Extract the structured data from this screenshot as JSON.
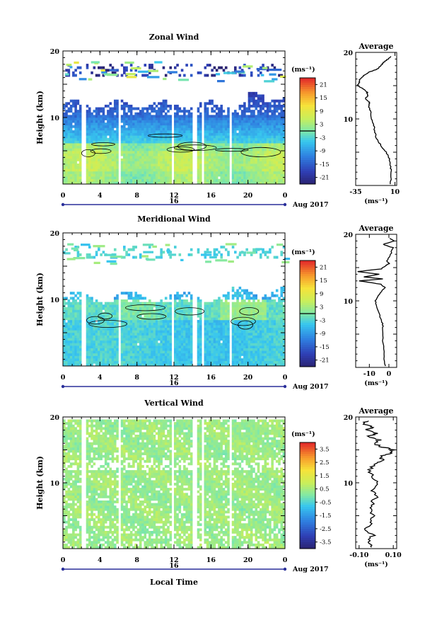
{
  "chart_data": [
    {
      "type": "heatmap",
      "title": "Zonal Wind",
      "ylabel": "Height (km)",
      "yticks": [
        "20",
        "10"
      ],
      "ylim": [
        0,
        20
      ],
      "xticks": [
        "0",
        "4",
        "8",
        "12",
        "16",
        "20",
        "0"
      ],
      "xlim": [
        0,
        24
      ],
      "date_day": "16",
      "date_label": "Aug 2017",
      "unit_label": "(ms⁻¹)",
      "colorbar_ticks": [
        "21",
        "15",
        "9",
        "3",
        "-3",
        "-9",
        "-15",
        "-21"
      ],
      "colorbar_range": [
        -24,
        24
      ],
      "average": {
        "title": "Average",
        "xticks": [
          "-35",
          "10"
        ],
        "xlim": [
          -35,
          12
        ],
        "xlabel": "(ms⁻¹)",
        "yticks": [
          "20",
          "10"
        ],
        "profile_h": [
          0.2,
          2,
          3,
          4,
          5,
          6,
          7,
          8,
          9,
          10,
          11,
          12,
          12.5,
          13,
          13.5,
          14,
          14.5,
          15,
          15.5,
          16,
          16.5,
          17,
          17.5,
          18,
          18.5,
          19,
          19.5
        ],
        "profile_v": [
          5,
          5.5,
          5,
          3.5,
          0,
          -6,
          -11,
          -13,
          -14,
          -17,
          -18,
          -20,
          -19,
          -24,
          -21,
          -22,
          -26,
          -33,
          -31,
          -30,
          -26,
          -20,
          -10,
          -6,
          -3,
          2,
          7
        ]
      }
    },
    {
      "type": "heatmap",
      "title": "Meridional Wind",
      "ylabel": "Height (km)",
      "yticks": [
        "20",
        "10"
      ],
      "ylim": [
        0,
        20
      ],
      "xticks": [
        "0",
        "4",
        "8",
        "12",
        "16",
        "20",
        "0"
      ],
      "xlim": [
        0,
        24
      ],
      "date_day": "16",
      "date_label": "Aug 2017",
      "unit_label": "(ms⁻¹)",
      "colorbar_ticks": [
        "21",
        "15",
        "9",
        "3",
        "-3",
        "-9",
        "-15",
        "-21"
      ],
      "colorbar_range": [
        -24,
        24
      ],
      "average": {
        "title": "Average",
        "xticks": [
          "-10",
          "0"
        ],
        "xlim": [
          -17,
          4
        ],
        "xlabel": "(ms⁻¹)",
        "yticks": [
          "20",
          "10"
        ],
        "profile_h": [
          0.2,
          2,
          4,
          6,
          7,
          8,
          9,
          10,
          11,
          12,
          12.5,
          13,
          13.3,
          13.6,
          14,
          14.4,
          14.8,
          15.2,
          15.6,
          16,
          17,
          18,
          18.5,
          19,
          19.5
        ],
        "profile_v": [
          -2,
          -2.5,
          -3,
          -3,
          -3.5,
          -5,
          -6,
          -7,
          -5,
          -2,
          -4,
          -15,
          -3,
          -13,
          -5,
          -16,
          -4,
          -2,
          0,
          -1,
          1,
          2,
          -3,
          3,
          0
        ]
      }
    },
    {
      "type": "heatmap",
      "title": "Vertical Wind",
      "ylabel": "Height (km)",
      "xlabel": "Local Time",
      "yticks": [
        "20",
        "10"
      ],
      "ylim": [
        0,
        20
      ],
      "xticks": [
        "0",
        "4",
        "8",
        "12",
        "16",
        "20",
        "0"
      ],
      "xlim": [
        0,
        24
      ],
      "date_day": "16",
      "date_label": "Aug 2017",
      "unit_label": "(ms⁻¹)",
      "colorbar_ticks": [
        "3.5",
        "2.5",
        "1.5",
        "0.5",
        "-0.5",
        "-1.5",
        "-2.5",
        "-3.5"
      ],
      "colorbar_range": [
        -4,
        4
      ],
      "average": {
        "title": "Average",
        "xticks": [
          "-0.10",
          "0.10"
        ],
        "xlim": [
          -0.12,
          0.12
        ],
        "xlabel": "(ms⁻¹)",
        "yticks": [
          "20",
          "10"
        ],
        "profile_h": [
          0.2,
          1,
          2,
          3,
          4,
          5,
          6,
          7,
          8,
          9,
          10,
          11,
          12,
          13,
          13.5,
          14,
          14.5,
          15,
          15.5,
          16,
          16.5,
          17,
          17.5,
          18,
          18.5,
          19,
          19.5
        ],
        "profile_v": [
          -0.03,
          -0.05,
          -0.02,
          -0.06,
          -0.03,
          -0.01,
          -0.04,
          -0.02,
          0.0,
          -0.03,
          0.01,
          -0.02,
          -0.04,
          0.0,
          0.04,
          0.02,
          0.08,
          0.1,
          0.03,
          -0.02,
          0.02,
          -0.05,
          0.0,
          -0.06,
          -0.02,
          -0.08,
          -0.04
        ]
      }
    }
  ]
}
